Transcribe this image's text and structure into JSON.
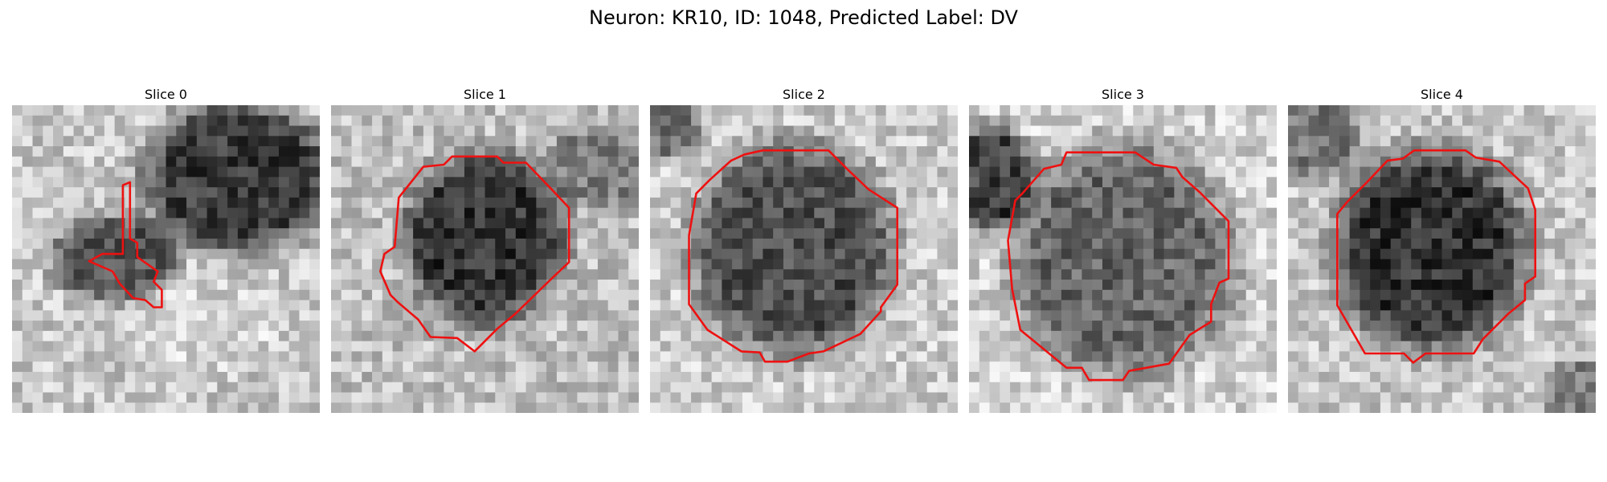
{
  "figure": {
    "title": "Neuron: KR10, ID: 1048, Predicted Label: DV"
  },
  "panels": [
    {
      "title": "Slice 0",
      "scene": "gray-microscopy-patch-with-red-contour"
    },
    {
      "title": "Slice 1",
      "scene": "gray-microscopy-patch-with-red-contour"
    },
    {
      "title": "Slice 2",
      "scene": "gray-microscopy-patch-with-red-contour"
    },
    {
      "title": "Slice 3",
      "scene": "gray-microscopy-patch-with-red-contour"
    },
    {
      "title": "Slice 4",
      "scene": "gray-microscopy-patch-with-red-contour"
    }
  ],
  "colors": {
    "contour": "#ee1111",
    "background": "#ffffff"
  }
}
